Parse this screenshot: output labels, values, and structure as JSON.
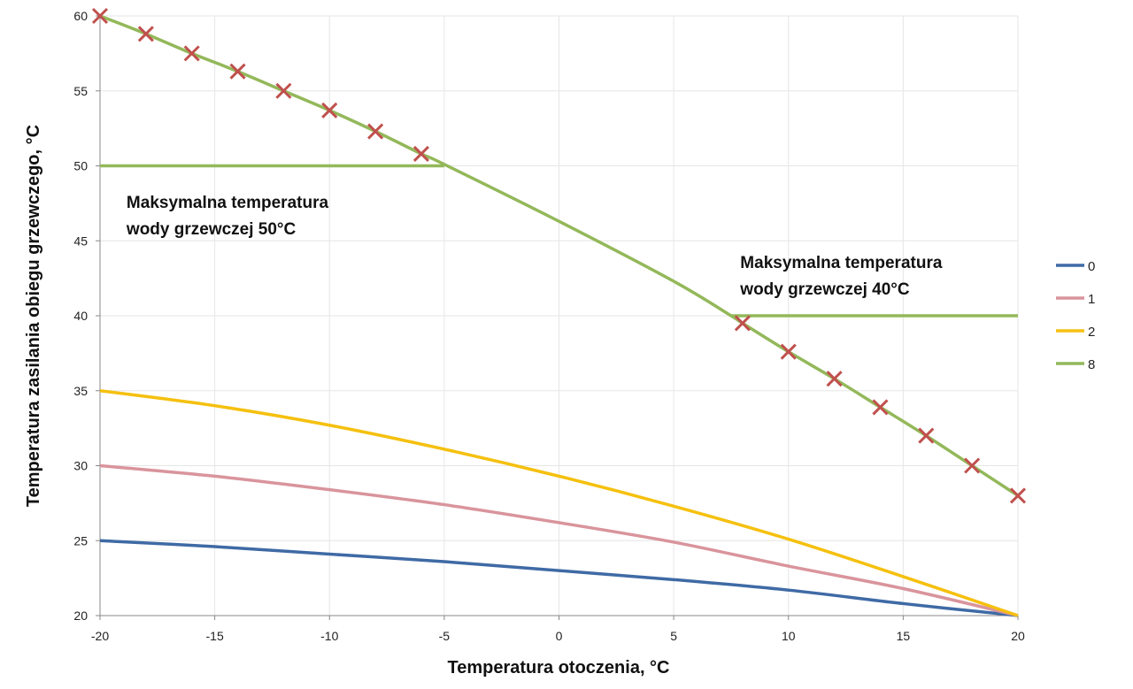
{
  "chart_data": {
    "type": "line",
    "title": "",
    "xlabel": "Temperatura otoczenia, °C",
    "ylabel": "Temperatura zasilania obiegu grzewczego, °C",
    "xlim": [
      -20,
      20
    ],
    "ylim": [
      20,
      60
    ],
    "xticks": [
      -20,
      -15,
      -10,
      -5,
      0,
      5,
      10,
      15,
      20
    ],
    "yticks": [
      20,
      25,
      30,
      35,
      40,
      45,
      50,
      55,
      60
    ],
    "grid": true,
    "legend_position": "right",
    "series": [
      {
        "name": "0",
        "color": "#3f6aa5",
        "x": [
          -20,
          -15,
          -10,
          -5,
          0,
          5,
          10,
          15,
          20
        ],
        "y": [
          25,
          24.6,
          24.1,
          23.6,
          23.0,
          22.4,
          21.7,
          20.8,
          20
        ]
      },
      {
        "name": "1",
        "color": "#d9949c",
        "x": [
          -20,
          -15,
          -10,
          -5,
          0,
          5,
          10,
          15,
          20
        ],
        "y": [
          30,
          29.3,
          28.4,
          27.4,
          26.2,
          24.9,
          23.3,
          21.8,
          20
        ]
      },
      {
        "name": "2",
        "color": "#f5c00f",
        "x": [
          -20,
          -15,
          -10,
          -5,
          0,
          5,
          10,
          15,
          20
        ],
        "y": [
          35,
          34.0,
          32.7,
          31.1,
          29.3,
          27.3,
          25.1,
          22.6,
          20
        ]
      },
      {
        "name": "8",
        "color": "#93b85a",
        "x": [
          -20,
          -18,
          -16,
          -14,
          -12,
          -10,
          -8,
          -6,
          -5,
          0,
          5,
          7.5,
          8,
          10,
          12,
          14,
          16,
          18,
          20
        ],
        "y": [
          60,
          58.8,
          57.5,
          56.3,
          55.0,
          53.7,
          52.3,
          50.8,
          50.1,
          46.3,
          42.3,
          40.0,
          39.5,
          37.6,
          35.8,
          33.9,
          32.0,
          30.0,
          28.0
        ]
      }
    ],
    "limit_lines": [
      {
        "y": 50,
        "x": [
          -20,
          -5
        ],
        "color": "#93b85a"
      },
      {
        "y": 40,
        "x": [
          7.5,
          20
        ],
        "color": "#93b85a"
      }
    ],
    "markers": {
      "symbol": "x",
      "color": "#c0504d",
      "x": [
        -20,
        -18,
        -16,
        -14,
        -12,
        -10,
        -8,
        -6,
        8,
        10,
        12,
        14,
        16,
        18,
        20
      ],
      "y": [
        60,
        58.8,
        57.5,
        56.3,
        55.0,
        53.7,
        52.3,
        50.8,
        39.5,
        37.6,
        35.8,
        33.9,
        32.0,
        30.0,
        28.0
      ]
    },
    "annotations": [
      {
        "lines": [
          "Maksymalna temperatura",
          "wody grzewczej 50°C"
        ],
        "at": [
          -19,
          47.2
        ]
      },
      {
        "lines": [
          "Maksymalna temperatura",
          "wody grzewczej 40°C"
        ],
        "at": [
          7.9,
          43.2
        ]
      }
    ]
  }
}
